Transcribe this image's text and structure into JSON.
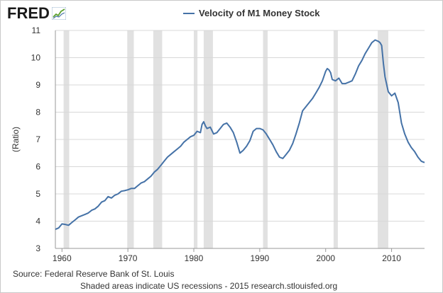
{
  "brand": {
    "logo_text": "FRED",
    "logo_icon": "line-chart-badge-icon"
  },
  "colors": {
    "series": "#4572a7",
    "recession": "#e1e1e1",
    "grid": "#d8d8d8",
    "axis": "#999999"
  },
  "source_text": "Source: Federal Reserve Bank of St. Louis",
  "footnote_text": "Shaded areas indicate US recessions - 2015 research.stlouisfed.org",
  "chart_data": {
    "type": "line",
    "title": "",
    "xlabel": "",
    "ylabel": "(Ratio)",
    "ylim": [
      3,
      11
    ],
    "xlim": [
      1959,
      2015
    ],
    "yticks": [
      3,
      4,
      5,
      6,
      7,
      8,
      9,
      10,
      11
    ],
    "xticks": [
      1960,
      1970,
      1980,
      1990,
      2000,
      2010
    ],
    "grid": "horizontal",
    "legend": "top-center",
    "recessions": [
      [
        1960.25,
        1961.1
      ],
      [
        1969.9,
        1970.9
      ],
      [
        1973.85,
        1975.2
      ],
      [
        1980.0,
        1980.55
      ],
      [
        1981.5,
        1982.9
      ],
      [
        1990.5,
        1991.2
      ],
      [
        2001.2,
        2001.85
      ],
      [
        2007.9,
        2009.5
      ]
    ],
    "series": [
      {
        "name": "Velocity of M1 Money Stock",
        "x": [
          1959,
          1959.5,
          1960,
          1960.5,
          1961,
          1961.5,
          1962,
          1962.5,
          1963,
          1963.5,
          1964,
          1964.5,
          1965,
          1965.5,
          1966,
          1966.5,
          1967,
          1967.5,
          1968,
          1968.5,
          1969,
          1969.5,
          1970,
          1970.5,
          1971,
          1971.5,
          1972,
          1972.5,
          1973,
          1973.5,
          1974,
          1974.5,
          1975,
          1975.5,
          1976,
          1976.5,
          1977,
          1977.5,
          1978,
          1978.5,
          1979,
          1979.5,
          1980,
          1980.5,
          1981,
          1981.25,
          1981.5,
          1981.75,
          1982,
          1982.5,
          1983,
          1983.5,
          1984,
          1984.5,
          1985,
          1985.5,
          1986,
          1986.5,
          1987,
          1987.5,
          1988,
          1988.5,
          1989,
          1989.5,
          1990,
          1990.5,
          1991,
          1991.5,
          1992,
          1992.5,
          1993,
          1993.5,
          1994,
          1994.5,
          1995,
          1995.5,
          1996,
          1996.5,
          1997,
          1997.5,
          1998,
          1998.5,
          1999,
          1999.5,
          2000,
          2000.25,
          2000.5,
          2000.75,
          2001,
          2001.5,
          2002,
          2002.5,
          2003,
          2003.5,
          2004,
          2004.5,
          2005,
          2005.5,
          2006,
          2006.5,
          2007,
          2007.5,
          2008,
          2008.25,
          2008.5,
          2008.75,
          2009,
          2009.5,
          2010,
          2010.5,
          2011,
          2011.5,
          2012,
          2012.5,
          2013,
          2013.5,
          2014,
          2014.5,
          2015
        ],
        "values": [
          3.7,
          3.75,
          3.9,
          3.88,
          3.85,
          3.95,
          4.05,
          4.15,
          4.2,
          4.25,
          4.3,
          4.4,
          4.45,
          4.55,
          4.7,
          4.75,
          4.9,
          4.85,
          4.95,
          5.0,
          5.1,
          5.12,
          5.15,
          5.2,
          5.2,
          5.3,
          5.4,
          5.45,
          5.55,
          5.65,
          5.8,
          5.9,
          6.05,
          6.2,
          6.35,
          6.45,
          6.55,
          6.65,
          6.75,
          6.9,
          7.0,
          7.1,
          7.15,
          7.3,
          7.25,
          7.55,
          7.65,
          7.5,
          7.4,
          7.45,
          7.2,
          7.25,
          7.4,
          7.55,
          7.6,
          7.45,
          7.25,
          6.9,
          6.5,
          6.6,
          6.75,
          6.95,
          7.3,
          7.4,
          7.4,
          7.35,
          7.2,
          7.0,
          6.8,
          6.55,
          6.35,
          6.3,
          6.45,
          6.6,
          6.85,
          7.2,
          7.6,
          8.05,
          8.2,
          8.35,
          8.5,
          8.7,
          8.9,
          9.15,
          9.5,
          9.6,
          9.55,
          9.45,
          9.2,
          9.15,
          9.25,
          9.05,
          9.05,
          9.1,
          9.15,
          9.4,
          9.7,
          9.9,
          10.15,
          10.35,
          10.55,
          10.65,
          10.6,
          10.55,
          10.45,
          9.8,
          9.3,
          8.75,
          8.6,
          8.7,
          8.35,
          7.6,
          7.2,
          6.9,
          6.7,
          6.55,
          6.35,
          6.2,
          6.15
        ]
      }
    ]
  }
}
